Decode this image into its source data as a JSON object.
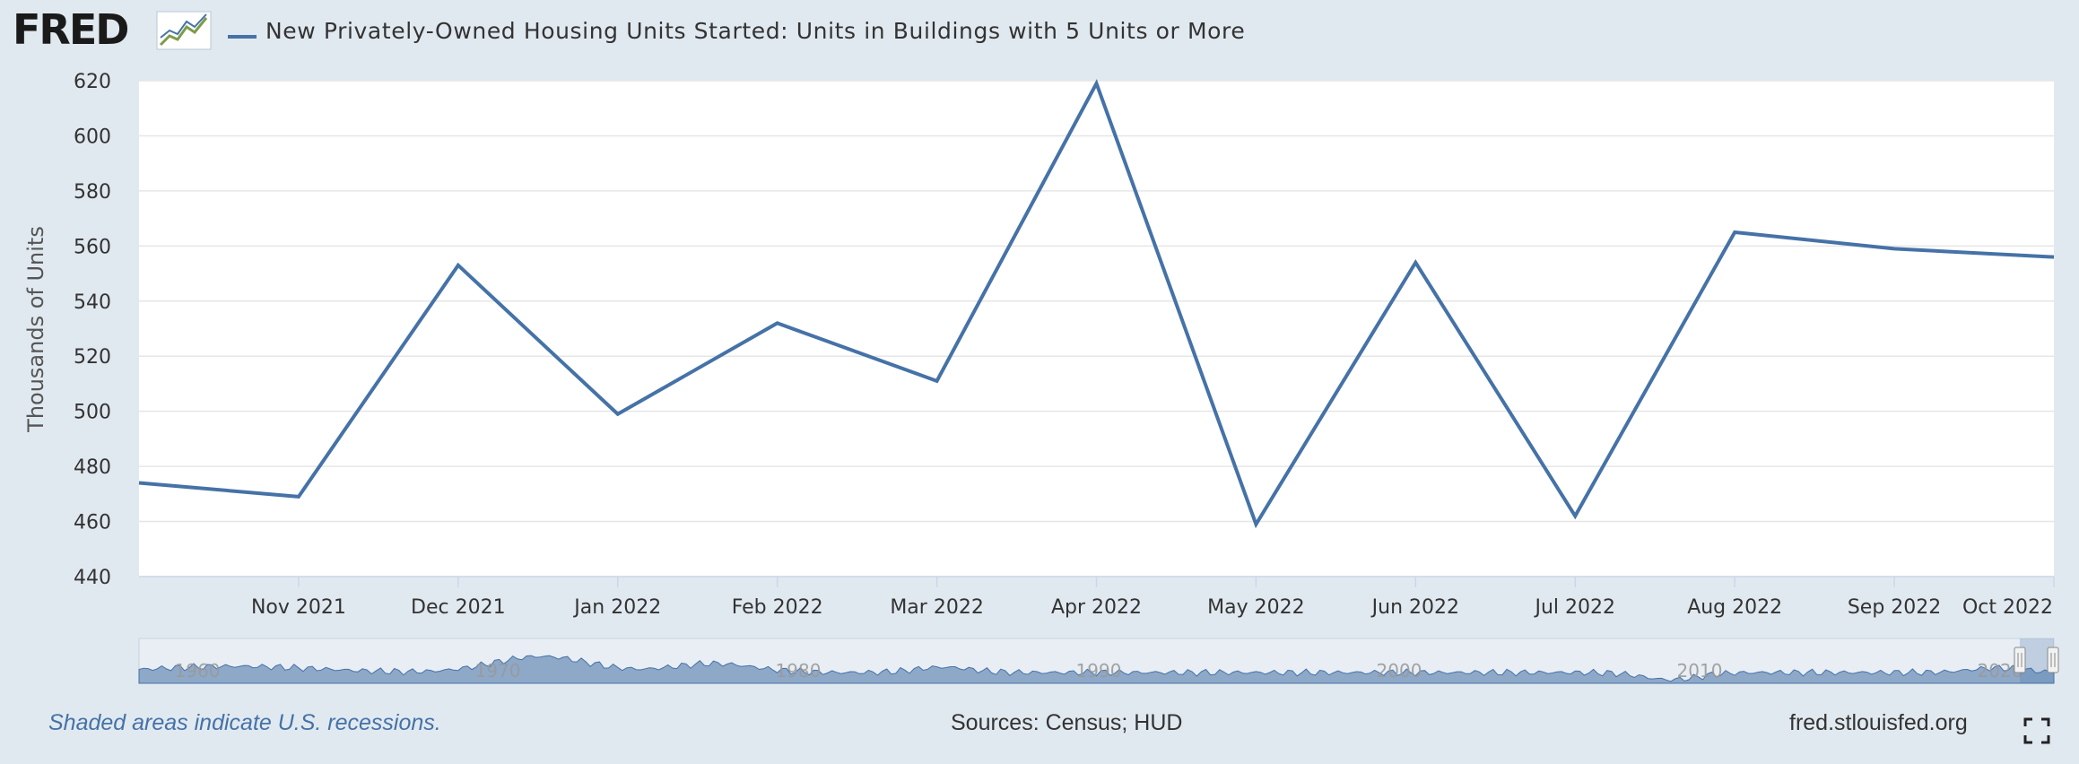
{
  "header": {
    "logo": "FRED",
    "logo_icon": "chart-line-icon",
    "title": "New Privately-Owned Housing Units Started: Units in Buildings with 5 Units or More"
  },
  "colors": {
    "series": "#4572a7",
    "background": "#e1e9f0",
    "plot": "#ffffff",
    "navigator_fill": "#8ea8c8"
  },
  "chart_data": {
    "type": "line",
    "title": "New Privately-Owned Housing Units Started: Units in Buildings with 5 Units or More",
    "xlabel": "",
    "ylabel": "Thousands of Units",
    "ylim": [
      440,
      620
    ],
    "yticks": [
      440,
      460,
      480,
      500,
      520,
      540,
      560,
      580,
      600,
      620
    ],
    "grid": true,
    "legend": "top-left",
    "x": [
      "2021-10",
      "2021-11",
      "2021-12",
      "2022-01",
      "2022-02",
      "2022-03",
      "2022-04",
      "2022-05",
      "2022-06",
      "2022-07",
      "2022-08",
      "2022-09",
      "2022-10"
    ],
    "xtick_labels": [
      "Nov 2021",
      "Dec 2021",
      "Jan 2022",
      "Feb 2022",
      "Mar 2022",
      "Apr 2022",
      "May 2022",
      "Jun 2022",
      "Jul 2022",
      "Aug 2022",
      "Sep 2022",
      "Oct 2022"
    ],
    "series": [
      {
        "name": "New Privately-Owned Housing Units Started: Units in Buildings with 5 Units or More",
        "values": [
          474,
          469,
          553,
          499,
          532,
          511,
          619,
          459,
          554,
          462,
          565,
          559,
          556
        ]
      }
    ]
  },
  "navigator": {
    "labels": [
      "1960",
      "1970",
      "1980",
      "1990",
      "2000",
      "2010",
      "2020"
    ]
  },
  "footer": {
    "recessions": "Shaded areas indicate U.S. recessions.",
    "sources": "Sources: Census; HUD",
    "site": "fred.stlouisfed.org",
    "fullscreen_icon": "fullscreen-icon"
  }
}
